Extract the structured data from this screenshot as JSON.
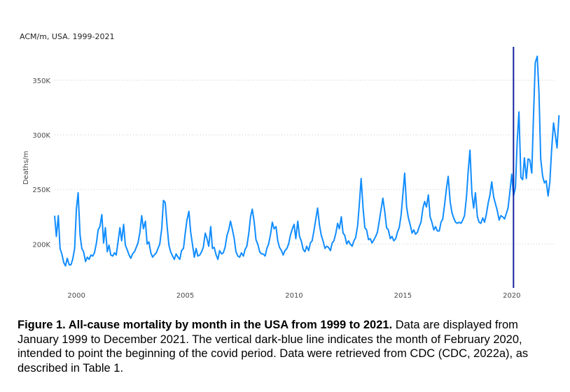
{
  "chart_data": {
    "type": "line",
    "title": "ACM/m, USA. 1999-2021",
    "ylabel": "Deaths/m",
    "xlabel": "",
    "ylim": [
      165000,
      380000
    ],
    "xlim": [
      1999.0,
      2022.0
    ],
    "x_ticks": [
      2000,
      2005,
      2010,
      2015,
      2020
    ],
    "x_tick_labels": [
      "2000",
      "2005",
      "2010",
      "2015",
      "2020"
    ],
    "y_ticks": [
      200000,
      250000,
      300000,
      350000
    ],
    "y_tick_labels": [
      "200K",
      "250K",
      "300K",
      "350K"
    ],
    "grid": "horizontal dotted",
    "series_color": "#118dff",
    "marker_color": "#12239e",
    "annotations": [
      {
        "type": "vertical-line",
        "x": 2020.08,
        "label": ""
      }
    ],
    "series": [
      {
        "values": [
          [
            1999.0,
            226000
          ],
          [
            1999.08,
            207000
          ],
          [
            1999.17,
            226000
          ],
          [
            1999.25,
            196000
          ],
          [
            1999.33,
            191000
          ],
          [
            1999.42,
            183000
          ],
          [
            1999.5,
            180000
          ],
          [
            1999.58,
            187000
          ],
          [
            1999.67,
            181000
          ],
          [
            1999.75,
            181000
          ],
          [
            1999.83,
            186000
          ],
          [
            1999.92,
            196000
          ],
          [
            2000.0,
            232000
          ],
          [
            2000.08,
            247000
          ],
          [
            2000.17,
            208000
          ],
          [
            2000.25,
            196000
          ],
          [
            2000.33,
            193000
          ],
          [
            2000.42,
            184000
          ],
          [
            2000.5,
            188000
          ],
          [
            2000.58,
            186000
          ],
          [
            2000.67,
            190000
          ],
          [
            2000.75,
            189000
          ],
          [
            2000.83,
            192000
          ],
          [
            2000.92,
            201000
          ],
          [
            2001.0,
            213000
          ],
          [
            2001.08,
            216000
          ],
          [
            2001.17,
            227000
          ],
          [
            2001.25,
            201000
          ],
          [
            2001.33,
            215000
          ],
          [
            2001.42,
            193000
          ],
          [
            2001.5,
            199000
          ],
          [
            2001.58,
            190000
          ],
          [
            2001.67,
            189000
          ],
          [
            2001.75,
            192000
          ],
          [
            2001.83,
            190000
          ],
          [
            2001.92,
            203000
          ],
          [
            2002.0,
            215000
          ],
          [
            2002.08,
            203000
          ],
          [
            2002.17,
            218000
          ],
          [
            2002.25,
            199000
          ],
          [
            2002.33,
            195000
          ],
          [
            2002.42,
            190000
          ],
          [
            2002.5,
            187000
          ],
          [
            2002.58,
            191000
          ],
          [
            2002.67,
            193000
          ],
          [
            2002.75,
            197000
          ],
          [
            2002.83,
            201000
          ],
          [
            2002.92,
            211000
          ],
          [
            2003.0,
            226000
          ],
          [
            2003.08,
            214000
          ],
          [
            2003.17,
            221000
          ],
          [
            2003.25,
            200000
          ],
          [
            2003.33,
            202000
          ],
          [
            2003.42,
            192000
          ],
          [
            2003.5,
            188000
          ],
          [
            2003.58,
            190000
          ],
          [
            2003.67,
            192000
          ],
          [
            2003.75,
            196000
          ],
          [
            2003.83,
            200000
          ],
          [
            2003.92,
            214000
          ],
          [
            2004.0,
            240000
          ],
          [
            2004.08,
            238000
          ],
          [
            2004.17,
            216000
          ],
          [
            2004.25,
            199000
          ],
          [
            2004.33,
            193000
          ],
          [
            2004.42,
            189000
          ],
          [
            2004.5,
            186000
          ],
          [
            2004.58,
            191000
          ],
          [
            2004.67,
            188000
          ],
          [
            2004.75,
            186000
          ],
          [
            2004.83,
            194000
          ],
          [
            2004.92,
            196000
          ],
          [
            2005.0,
            210000
          ],
          [
            2005.08,
            222000
          ],
          [
            2005.17,
            230000
          ],
          [
            2005.25,
            211000
          ],
          [
            2005.33,
            200000
          ],
          [
            2005.42,
            188000
          ],
          [
            2005.5,
            196000
          ],
          [
            2005.58,
            189000
          ],
          [
            2005.67,
            190000
          ],
          [
            2005.75,
            193000
          ],
          [
            2005.83,
            197000
          ],
          [
            2005.92,
            210000
          ],
          [
            2006.0,
            205000
          ],
          [
            2006.08,
            198000
          ],
          [
            2006.17,
            216000
          ],
          [
            2006.25,
            196000
          ],
          [
            2006.33,
            197000
          ],
          [
            2006.42,
            190000
          ],
          [
            2006.5,
            186000
          ],
          [
            2006.58,
            194000
          ],
          [
            2006.67,
            191000
          ],
          [
            2006.75,
            192000
          ],
          [
            2006.83,
            197000
          ],
          [
            2006.92,
            208000
          ],
          [
            2007.0,
            213000
          ],
          [
            2007.08,
            221000
          ],
          [
            2007.17,
            213000
          ],
          [
            2007.25,
            205000
          ],
          [
            2007.33,
            193000
          ],
          [
            2007.42,
            189000
          ],
          [
            2007.5,
            188000
          ],
          [
            2007.58,
            192000
          ],
          [
            2007.67,
            189000
          ],
          [
            2007.75,
            195000
          ],
          [
            2007.83,
            198000
          ],
          [
            2007.92,
            210000
          ],
          [
            2008.0,
            225000
          ],
          [
            2008.08,
            232000
          ],
          [
            2008.17,
            220000
          ],
          [
            2008.25,
            204000
          ],
          [
            2008.33,
            200000
          ],
          [
            2008.42,
            193000
          ],
          [
            2008.5,
            191000
          ],
          [
            2008.58,
            191000
          ],
          [
            2008.67,
            189000
          ],
          [
            2008.75,
            196000
          ],
          [
            2008.83,
            200000
          ],
          [
            2008.92,
            209000
          ],
          [
            2009.0,
            220000
          ],
          [
            2009.08,
            214000
          ],
          [
            2009.17,
            216000
          ],
          [
            2009.25,
            203000
          ],
          [
            2009.33,
            197000
          ],
          [
            2009.42,
            194000
          ],
          [
            2009.5,
            190000
          ],
          [
            2009.58,
            194000
          ],
          [
            2009.67,
            196000
          ],
          [
            2009.75,
            200000
          ],
          [
            2009.83,
            208000
          ],
          [
            2009.92,
            214000
          ],
          [
            2010.0,
            218000
          ],
          [
            2010.08,
            205000
          ],
          [
            2010.17,
            221000
          ],
          [
            2010.25,
            207000
          ],
          [
            2010.33,
            203000
          ],
          [
            2010.42,
            195000
          ],
          [
            2010.5,
            193000
          ],
          [
            2010.58,
            198000
          ],
          [
            2010.67,
            194000
          ],
          [
            2010.75,
            201000
          ],
          [
            2010.83,
            203000
          ],
          [
            2010.92,
            213000
          ],
          [
            2011.0,
            223000
          ],
          [
            2011.08,
            233000
          ],
          [
            2011.17,
            217000
          ],
          [
            2011.25,
            208000
          ],
          [
            2011.33,
            203000
          ],
          [
            2011.42,
            196000
          ],
          [
            2011.5,
            198000
          ],
          [
            2011.58,
            197000
          ],
          [
            2011.67,
            194000
          ],
          [
            2011.75,
            201000
          ],
          [
            2011.83,
            203000
          ],
          [
            2011.92,
            210000
          ],
          [
            2012.0,
            219000
          ],
          [
            2012.08,
            214000
          ],
          [
            2012.17,
            225000
          ],
          [
            2012.25,
            210000
          ],
          [
            2012.33,
            208000
          ],
          [
            2012.42,
            200000
          ],
          [
            2012.5,
            203000
          ],
          [
            2012.58,
            200000
          ],
          [
            2012.67,
            198000
          ],
          [
            2012.75,
            203000
          ],
          [
            2012.83,
            206000
          ],
          [
            2012.92,
            217000
          ],
          [
            2013.0,
            237000
          ],
          [
            2013.08,
            260000
          ],
          [
            2013.17,
            233000
          ],
          [
            2013.25,
            215000
          ],
          [
            2013.33,
            213000
          ],
          [
            2013.42,
            204000
          ],
          [
            2013.5,
            205000
          ],
          [
            2013.58,
            201000
          ],
          [
            2013.67,
            204000
          ],
          [
            2013.75,
            207000
          ],
          [
            2013.83,
            211000
          ],
          [
            2013.92,
            222000
          ],
          [
            2014.0,
            232000
          ],
          [
            2014.08,
            242000
          ],
          [
            2014.17,
            229000
          ],
          [
            2014.25,
            215000
          ],
          [
            2014.33,
            213000
          ],
          [
            2014.42,
            205000
          ],
          [
            2014.5,
            207000
          ],
          [
            2014.58,
            203000
          ],
          [
            2014.67,
            205000
          ],
          [
            2014.75,
            211000
          ],
          [
            2014.83,
            215000
          ],
          [
            2014.92,
            227000
          ],
          [
            2015.0,
            246000
          ],
          [
            2015.08,
            265000
          ],
          [
            2015.17,
            234000
          ],
          [
            2015.25,
            224000
          ],
          [
            2015.33,
            218000
          ],
          [
            2015.42,
            210000
          ],
          [
            2015.5,
            213000
          ],
          [
            2015.58,
            209000
          ],
          [
            2015.67,
            211000
          ],
          [
            2015.75,
            216000
          ],
          [
            2015.83,
            220000
          ],
          [
            2015.92,
            233000
          ],
          [
            2016.0,
            239000
          ],
          [
            2016.08,
            234000
          ],
          [
            2016.17,
            245000
          ],
          [
            2016.25,
            225000
          ],
          [
            2016.33,
            220000
          ],
          [
            2016.42,
            213000
          ],
          [
            2016.5,
            216000
          ],
          [
            2016.58,
            212000
          ],
          [
            2016.67,
            212000
          ],
          [
            2016.75,
            220000
          ],
          [
            2016.83,
            223000
          ],
          [
            2016.92,
            237000
          ],
          [
            2017.0,
            251000
          ],
          [
            2017.08,
            262000
          ],
          [
            2017.17,
            239000
          ],
          [
            2017.25,
            229000
          ],
          [
            2017.33,
            224000
          ],
          [
            2017.42,
            220000
          ],
          [
            2017.5,
            219000
          ],
          [
            2017.58,
            220000
          ],
          [
            2017.67,
            219000
          ],
          [
            2017.75,
            222000
          ],
          [
            2017.83,
            226000
          ],
          [
            2017.92,
            243000
          ],
          [
            2018.0,
            267000
          ],
          [
            2018.08,
            286000
          ],
          [
            2018.17,
            246000
          ],
          [
            2018.25,
            233000
          ],
          [
            2018.33,
            247000
          ],
          [
            2018.42,
            225000
          ],
          [
            2018.5,
            220000
          ],
          [
            2018.58,
            219000
          ],
          [
            2018.67,
            224000
          ],
          [
            2018.75,
            220000
          ],
          [
            2018.83,
            227000
          ],
          [
            2018.92,
            238000
          ],
          [
            2019.0,
            245000
          ],
          [
            2019.08,
            257000
          ],
          [
            2019.17,
            243000
          ],
          [
            2019.25,
            237000
          ],
          [
            2019.33,
            231000
          ],
          [
            2019.42,
            222000
          ],
          [
            2019.5,
            226000
          ],
          [
            2019.58,
            225000
          ],
          [
            2019.67,
            223000
          ],
          [
            2019.75,
            228000
          ],
          [
            2019.83,
            233000
          ],
          [
            2019.92,
            249000
          ],
          [
            2020.0,
            264000
          ],
          [
            2020.08,
            244000
          ],
          [
            2020.17,
            252000
          ],
          [
            2020.25,
            294000
          ],
          [
            2020.33,
            321000
          ],
          [
            2020.42,
            261000
          ],
          [
            2020.5,
            259000
          ],
          [
            2020.58,
            279000
          ],
          [
            2020.67,
            260000
          ],
          [
            2020.75,
            278000
          ],
          [
            2020.83,
            277000
          ],
          [
            2020.92,
            265000
          ],
          [
            2021.0,
            318000
          ],
          [
            2021.08,
            366000
          ],
          [
            2021.17,
            372000
          ],
          [
            2021.25,
            339000
          ],
          [
            2021.33,
            278000
          ],
          [
            2021.42,
            262000
          ],
          [
            2021.5,
            256000
          ],
          [
            2021.58,
            258000
          ],
          [
            2021.67,
            244000
          ],
          [
            2021.75,
            257000
          ],
          [
            2021.83,
            286000
          ],
          [
            2021.92,
            311000
          ],
          [
            2022.0,
            300000
          ],
          [
            2022.08,
            288000
          ],
          [
            2022.17,
            318000
          ]
        ]
      }
    ]
  },
  "caption": {
    "label": "Figure 1. All-cause mortality by month in the USA from 1999 to 2021.",
    "text": "Data are displayed from January 1999 to December 2021. The vertical dark-blue line indicates the month of February 2020, intended to point the beginning of the covid period. Data were retrieved from CDC (CDC, 2022a), as described in Table 1."
  }
}
